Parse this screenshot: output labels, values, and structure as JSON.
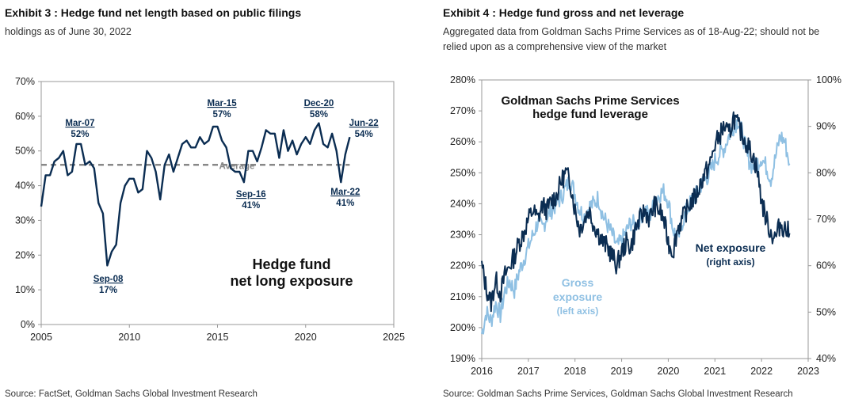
{
  "exhibit3": {
    "title": "Exhibit 3 : Hedge fund net length based on public filings",
    "subtitle": "holdings as of June 30, 2022",
    "source": "Source: FactSet, Goldman Sachs Global Investment Research"
  },
  "exhibit4": {
    "title": "Exhibit 4 : Hedge fund gross and net leverage",
    "subtitle": "Aggregated data from Goldman Sachs Prime Services as of 18-Aug-22; should not be relied upon as a comprehensive view of the market",
    "source": "Source: Goldman Sachs Prime Services, Goldman Sachs Global Investment Research"
  },
  "colors": {
    "navy": "#0b2d52",
    "light_blue": "#8fc0e3",
    "average_gray": "#888888",
    "axis": "#999999"
  },
  "chart_data": [
    {
      "type": "line",
      "ylim": [
        0,
        70
      ],
      "xlim": [
        2005,
        2025
      ],
      "x_ticks": [
        "2005",
        "2010",
        "2015",
        "2020",
        "2025"
      ],
      "y_ticks": [
        "0%",
        "10%",
        "20%",
        "30%",
        "40%",
        "50%",
        "60%",
        "70%"
      ],
      "y_unit": "%",
      "inner_label_line1": "Hedge fund",
      "inner_label_line2": "net long exposure",
      "average": {
        "label": "Average",
        "value": 46
      },
      "series": [
        {
          "x": [
            2005.0,
            2005.25,
            2005.5,
            2005.75,
            2006.0,
            2006.25,
            2006.5,
            2006.75,
            2007.0,
            2007.25,
            2007.5,
            2007.75,
            2008.0,
            2008.25,
            2008.5,
            2008.75,
            2009.0,
            2009.25,
            2009.5,
            2009.75,
            2010.0,
            2010.25,
            2010.5,
            2010.75,
            2011.0,
            2011.25,
            2011.5,
            2011.75,
            2012.0,
            2012.25,
            2012.5,
            2012.75,
            2013.0,
            2013.25,
            2013.5,
            2013.75,
            2014.0,
            2014.25,
            2014.5,
            2014.75,
            2015.0,
            2015.25,
            2015.5,
            2015.75,
            2016.0,
            2016.25,
            2016.5,
            2016.75,
            2017.0,
            2017.25,
            2017.5,
            2017.75,
            2018.0,
            2018.25,
            2018.5,
            2018.75,
            2019.0,
            2019.25,
            2019.5,
            2019.75,
            2020.0,
            2020.25,
            2020.5,
            2020.75,
            2021.0,
            2021.25,
            2021.5,
            2021.75,
            2022.0,
            2022.25,
            2022.5
          ],
          "y": [
            34,
            43,
            43,
            47,
            48,
            50,
            43,
            44,
            52,
            52,
            46,
            47,
            45,
            35,
            32,
            17,
            21,
            23,
            35,
            40,
            42,
            42,
            38,
            39,
            50,
            48,
            44,
            36,
            46,
            49,
            44,
            48,
            52,
            53,
            51,
            51,
            54,
            52,
            53,
            57,
            57,
            53,
            51,
            45,
            44,
            44,
            41,
            50,
            50,
            47,
            51,
            56,
            55,
            55,
            48,
            56,
            50,
            53,
            49,
            52,
            54,
            52,
            56,
            58,
            52,
            51,
            55,
            50,
            41,
            49,
            54
          ]
        }
      ],
      "annotations": [
        {
          "date": "Mar-07",
          "value": "52%"
        },
        {
          "date": "Sep-08",
          "value": "17%"
        },
        {
          "date": "Mar-15",
          "value": "57%"
        },
        {
          "date": "Sep-16",
          "value": "41%"
        },
        {
          "date": "Dec-20",
          "value": "58%"
        },
        {
          "date": "Mar-22",
          "value": "41%"
        },
        {
          "date": "Jun-22",
          "value": "54%"
        }
      ]
    },
    {
      "type": "line",
      "xlim": [
        2016,
        2023
      ],
      "ylim_left": [
        190,
        280
      ],
      "ylim_right": [
        40,
        100
      ],
      "x_ticks": [
        "2016",
        "2017",
        "2018",
        "2019",
        "2020",
        "2021",
        "2022",
        "2023"
      ],
      "y_ticks_left": [
        "190%",
        "200%",
        "210%",
        "220%",
        "230%",
        "240%",
        "250%",
        "260%",
        "270%",
        "280%"
      ],
      "y_ticks_right": [
        "40%",
        "50%",
        "60%",
        "70%",
        "80%",
        "90%",
        "100%"
      ],
      "inner_title_line1": "Goldman Sachs Prime Services",
      "inner_title_line2": "hedge fund leverage",
      "series": [
        {
          "name_line1": "Gross",
          "name_line2": "exposure",
          "axis_label": "(left axis)",
          "axis": "left",
          "color": "#8fc0e3",
          "x": [
            2016.0,
            2016.1,
            2016.2,
            2016.3,
            2016.4,
            2016.5,
            2016.6,
            2016.7,
            2016.8,
            2016.9,
            2017.0,
            2017.1,
            2017.2,
            2017.3,
            2017.4,
            2017.5,
            2017.6,
            2017.7,
            2017.8,
            2017.9,
            2018.0,
            2018.1,
            2018.2,
            2018.3,
            2018.4,
            2018.5,
            2018.6,
            2018.7,
            2018.8,
            2018.9,
            2019.0,
            2019.1,
            2019.2,
            2019.3,
            2019.4,
            2019.5,
            2019.6,
            2019.7,
            2019.8,
            2019.9,
            2020.0,
            2020.1,
            2020.2,
            2020.3,
            2020.4,
            2020.5,
            2020.6,
            2020.7,
            2020.8,
            2020.9,
            2021.0,
            2021.1,
            2021.2,
            2021.3,
            2021.4,
            2021.5,
            2021.6,
            2021.7,
            2021.8,
            2021.9,
            2022.0,
            2022.1,
            2022.2,
            2022.3,
            2022.4,
            2022.5,
            2022.6
          ],
          "y": [
            198,
            205,
            202,
            208,
            204,
            212,
            215,
            212,
            218,
            222,
            226,
            230,
            234,
            232,
            236,
            238,
            240,
            242,
            245,
            248,
            243,
            238,
            236,
            239,
            240,
            242,
            236,
            233,
            230,
            226,
            228,
            231,
            234,
            233,
            236,
            238,
            236,
            240,
            243,
            244,
            241,
            232,
            228,
            234,
            238,
            241,
            243,
            246,
            248,
            250,
            254,
            256,
            258,
            262,
            265,
            267,
            262,
            255,
            252,
            253,
            255,
            252,
            248,
            255,
            262,
            260,
            253
          ]
        },
        {
          "name_line1": "Net exposure",
          "name_line2": "",
          "axis_label": "(right axis)",
          "axis": "right",
          "color": "#0b2d52",
          "x": [
            2016.0,
            2016.1,
            2016.2,
            2016.3,
            2016.4,
            2016.5,
            2016.6,
            2016.7,
            2016.8,
            2016.9,
            2017.0,
            2017.1,
            2017.2,
            2017.3,
            2017.4,
            2017.5,
            2017.6,
            2017.7,
            2017.8,
            2017.9,
            2018.0,
            2018.1,
            2018.2,
            2018.3,
            2018.4,
            2018.5,
            2018.6,
            2018.7,
            2018.8,
            2018.9,
            2019.0,
            2019.1,
            2019.2,
            2019.3,
            2019.4,
            2019.5,
            2019.6,
            2019.7,
            2019.8,
            2019.9,
            2020.0,
            2020.1,
            2020.2,
            2020.3,
            2020.4,
            2020.5,
            2020.6,
            2020.7,
            2020.8,
            2020.9,
            2021.0,
            2021.1,
            2021.2,
            2021.3,
            2021.4,
            2021.5,
            2021.6,
            2021.7,
            2021.8,
            2021.9,
            2022.0,
            2022.1,
            2022.2,
            2022.3,
            2022.4,
            2022.5,
            2022.6
          ],
          "y": [
            60,
            55,
            52,
            57,
            54,
            58,
            60,
            62,
            65,
            67,
            70,
            72,
            70,
            73,
            72,
            74,
            75,
            78,
            80,
            78,
            72,
            68,
            70,
            72,
            69,
            67,
            65,
            64,
            62,
            60,
            63,
            65,
            64,
            68,
            70,
            72,
            70,
            73,
            72,
            70,
            65,
            63,
            68,
            70,
            72,
            74,
            75,
            78,
            80,
            82,
            86,
            88,
            90,
            88,
            92,
            90,
            88,
            86,
            84,
            81,
            74,
            70,
            67,
            66,
            69,
            68,
            67
          ]
        }
      ]
    }
  ]
}
